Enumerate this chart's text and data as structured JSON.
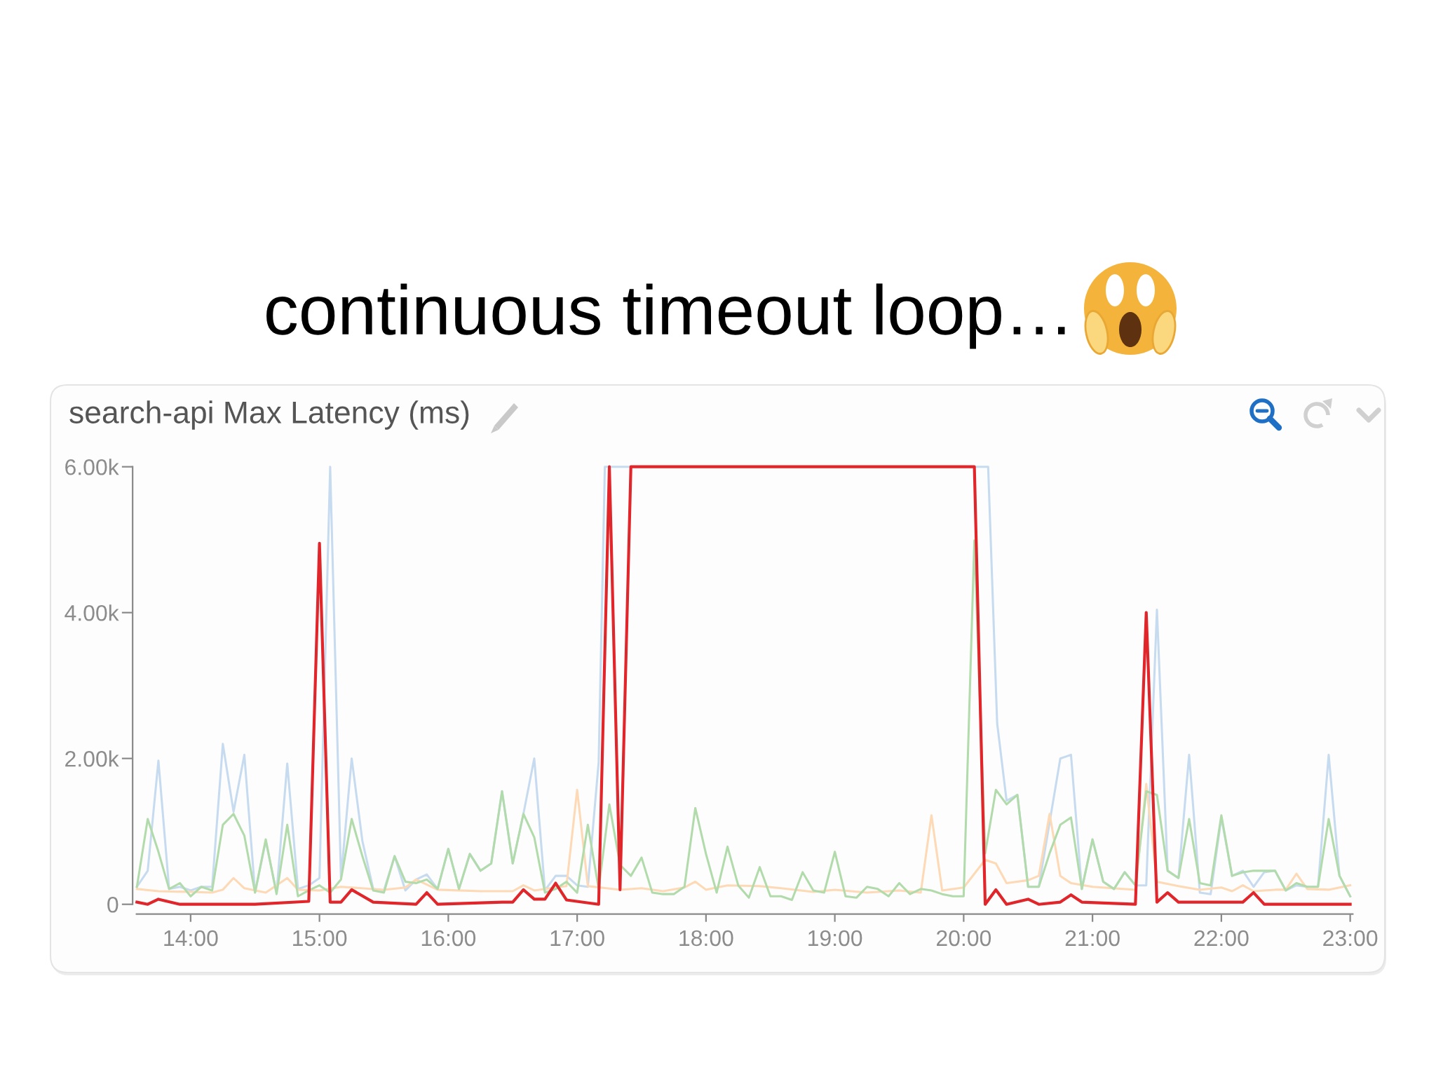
{
  "chart_data": {
    "type": "line",
    "title": "continuous timeout loop…",
    "subtitle": "search-api Max Latency (ms)",
    "xlim": [
      13.58,
      23.02
    ],
    "xticks": [
      {
        "value": 14,
        "label": "14:00"
      },
      {
        "value": 15,
        "label": "15:00"
      },
      {
        "value": 16,
        "label": "16:00"
      },
      {
        "value": 17,
        "label": "17:00"
      },
      {
        "value": 18,
        "label": "18:00"
      },
      {
        "value": 19,
        "label": "19:00"
      },
      {
        "value": 20,
        "label": "20:00"
      },
      {
        "value": 21,
        "label": "21:00"
      },
      {
        "value": 22,
        "label": "22:00"
      },
      {
        "value": 23,
        "label": "23:00"
      }
    ],
    "ylim": [
      0,
      6000
    ],
    "yticks": [
      0,
      {
        "value": 2000,
        "label": "2.00k"
      },
      {
        "value": 4000,
        "label": "4.00k"
      },
      {
        "value": 6000,
        "label": "6.00k"
      }
    ],
    "line_style": "solid",
    "series": [
      {
        "color": "#c6dbef",
        "x": [
          13.583,
          13.667,
          13.75,
          13.833,
          13.917,
          14.0,
          14.083,
          14.167,
          14.25,
          14.333,
          14.417,
          14.5,
          14.583,
          14.667,
          14.75,
          14.833,
          14.917,
          15.0,
          15.083,
          15.167,
          15.25,
          15.333,
          15.417,
          15.5,
          15.583,
          15.667,
          15.75,
          15.833,
          15.917,
          16.0,
          16.083,
          16.167,
          16.25,
          16.333,
          16.417,
          16.5,
          16.583,
          16.667,
          16.75,
          16.833,
          16.917,
          17.0,
          17.083,
          17.167,
          17.215,
          20.19,
          20.26,
          20.333,
          20.417,
          20.5,
          20.583,
          20.75,
          20.833,
          20.917,
          21.0,
          21.083,
          21.167,
          21.25,
          21.333,
          21.417,
          21.5,
          21.583,
          21.667,
          21.75,
          21.833,
          21.917,
          22.0,
          22.083,
          22.167,
          22.25,
          22.333,
          22.417,
          22.5,
          22.583,
          22.667,
          22.75,
          22.833,
          22.917,
          23.0
        ],
        "values": [
          240,
          460,
          1970,
          210,
          240,
          190,
          240,
          240,
          2200,
          1270,
          2050,
          160,
          870,
          160,
          1930,
          210,
          260,
          360,
          6000,
          360,
          2000,
          870,
          210,
          190,
          660,
          190,
          340,
          410,
          210,
          760,
          210,
          690,
          460,
          560,
          1550,
          560,
          1240,
          2000,
          190,
          390,
          390,
          260,
          240,
          1950,
          6000,
          6000,
          2480,
          1420,
          1500,
          240,
          240,
          2000,
          2050,
          210,
          890,
          310,
          210,
          440,
          260,
          260,
          4040,
          460,
          360,
          2050,
          160,
          140,
          1190,
          390,
          460,
          240,
          440,
          460,
          190,
          260,
          240,
          240,
          2050,
          390,
          110
        ]
      },
      {
        "color": "#fdd9b5",
        "x": [
          13.583,
          13.75,
          14.0,
          14.167,
          14.25,
          14.333,
          14.417,
          14.583,
          14.75,
          14.833,
          15.0,
          15.167,
          15.5,
          15.667,
          15.75,
          15.917,
          16.25,
          16.5,
          16.583,
          16.667,
          16.833,
          16.917,
          17.0,
          17.083,
          17.333,
          17.5,
          17.667,
          17.833,
          17.917,
          18.0,
          18.167,
          18.417,
          18.583,
          18.833,
          19.0,
          19.25,
          19.417,
          19.5,
          19.667,
          19.75,
          19.833,
          20.0,
          20.167,
          20.25,
          20.333,
          20.5,
          20.583,
          20.667,
          20.75,
          20.833,
          21.0,
          21.333,
          21.417,
          21.5,
          21.667,
          21.833,
          22.0,
          22.083,
          22.167,
          22.25,
          22.417,
          22.5,
          22.583,
          22.667,
          22.833,
          23.0
        ],
        "values": [
          210,
          180,
          170,
          160,
          200,
          360,
          220,
          160,
          360,
          200,
          190,
          240,
          200,
          230,
          340,
          200,
          180,
          180,
          260,
          190,
          230,
          250,
          1570,
          250,
          200,
          220,
          180,
          230,
          310,
          200,
          260,
          250,
          220,
          170,
          200,
          160,
          180,
          190,
          160,
          1220,
          190,
          230,
          610,
          560,
          290,
          330,
          390,
          1240,
          390,
          290,
          240,
          200,
          1650,
          310,
          250,
          200,
          230,
          180,
          260,
          180,
          200,
          200,
          420,
          210,
          200,
          260
        ]
      },
      {
        "color": "#b2dbab",
        "x": [
          13.583,
          13.667,
          13.75,
          13.833,
          13.917,
          14.0,
          14.083,
          14.167,
          14.25,
          14.333,
          14.417,
          14.5,
          14.583,
          14.667,
          14.75,
          14.833,
          14.917,
          15.0,
          15.083,
          15.167,
          15.25,
          15.333,
          15.417,
          15.5,
          15.583,
          15.667,
          15.75,
          15.833,
          15.917,
          16.0,
          16.083,
          16.167,
          16.25,
          16.333,
          16.417,
          16.5,
          16.583,
          16.667,
          16.75,
          16.833,
          16.917,
          17.0,
          17.083,
          17.167,
          17.25,
          17.333,
          17.417,
          17.5,
          17.583,
          17.667,
          17.75,
          17.833,
          17.917,
          18.0,
          18.083,
          18.167,
          18.25,
          18.333,
          18.417,
          18.5,
          18.583,
          18.667,
          18.75,
          18.833,
          18.917,
          19.0,
          19.083,
          19.167,
          19.25,
          19.333,
          19.417,
          19.5,
          19.583,
          19.667,
          19.75,
          19.833,
          19.917,
          20.0,
          20.083,
          20.167,
          20.25,
          20.333,
          20.417,
          20.5,
          20.583,
          20.667,
          20.75,
          20.833,
          20.917,
          21.0,
          21.083,
          21.167,
          21.25,
          21.333,
          21.417,
          21.5,
          21.583,
          21.667,
          21.75,
          21.833,
          21.917,
          22.0,
          22.083,
          22.167,
          22.25,
          22.333,
          22.417,
          22.5,
          22.583,
          22.667,
          22.75,
          22.833,
          22.917,
          23.0
        ],
        "values": [
          240,
          1170,
          720,
          210,
          290,
          110,
          240,
          190,
          1090,
          1240,
          940,
          160,
          890,
          140,
          1090,
          110,
          190,
          260,
          160,
          340,
          1170,
          660,
          190,
          160,
          660,
          310,
          290,
          340,
          210,
          760,
          210,
          690,
          460,
          560,
          1550,
          560,
          1240,
          920,
          160,
          210,
          310,
          160,
          1090,
          210,
          1370,
          540,
          390,
          640,
          160,
          140,
          140,
          240,
          1320,
          690,
          160,
          790,
          260,
          90,
          510,
          110,
          110,
          60,
          440,
          190,
          160,
          720,
          110,
          90,
          240,
          210,
          110,
          290,
          140,
          210,
          190,
          140,
          110,
          110,
          4990,
          700,
          1570,
          1370,
          1500,
          240,
          240,
          700,
          1090,
          1190,
          210,
          890,
          310,
          210,
          440,
          260,
          1550,
          1500,
          460,
          360,
          1170,
          290,
          260,
          1220,
          390,
          440,
          460,
          460,
          460,
          190,
          290,
          240,
          240,
          1170,
          390,
          110
        ]
      },
      {
        "color": "#e0262b",
        "x": [
          13.583,
          13.667,
          13.75,
          13.917,
          14.5,
          14.917,
          15.0,
          15.083,
          15.167,
          15.25,
          15.417,
          15.75,
          15.833,
          15.917,
          16.417,
          16.5,
          16.583,
          16.667,
          16.75,
          16.833,
          16.917,
          17.167,
          17.25,
          17.333,
          17.417,
          20.083,
          20.167,
          20.25,
          20.333,
          20.5,
          20.583,
          20.75,
          20.833,
          20.917,
          21.333,
          21.417,
          21.5,
          21.583,
          21.667,
          22.167,
          22.25,
          22.333,
          23.0
        ],
        "values": [
          30,
          0,
          70,
          0,
          0,
          40,
          4950,
          30,
          30,
          200,
          30,
          0,
          160,
          0,
          30,
          30,
          200,
          70,
          70,
          290,
          60,
          0,
          6000,
          200,
          6000,
          6000,
          0,
          200,
          0,
          70,
          0,
          30,
          130,
          30,
          0,
          4000,
          30,
          160,
          30,
          30,
          160,
          0,
          0
        ]
      }
    ]
  }
}
